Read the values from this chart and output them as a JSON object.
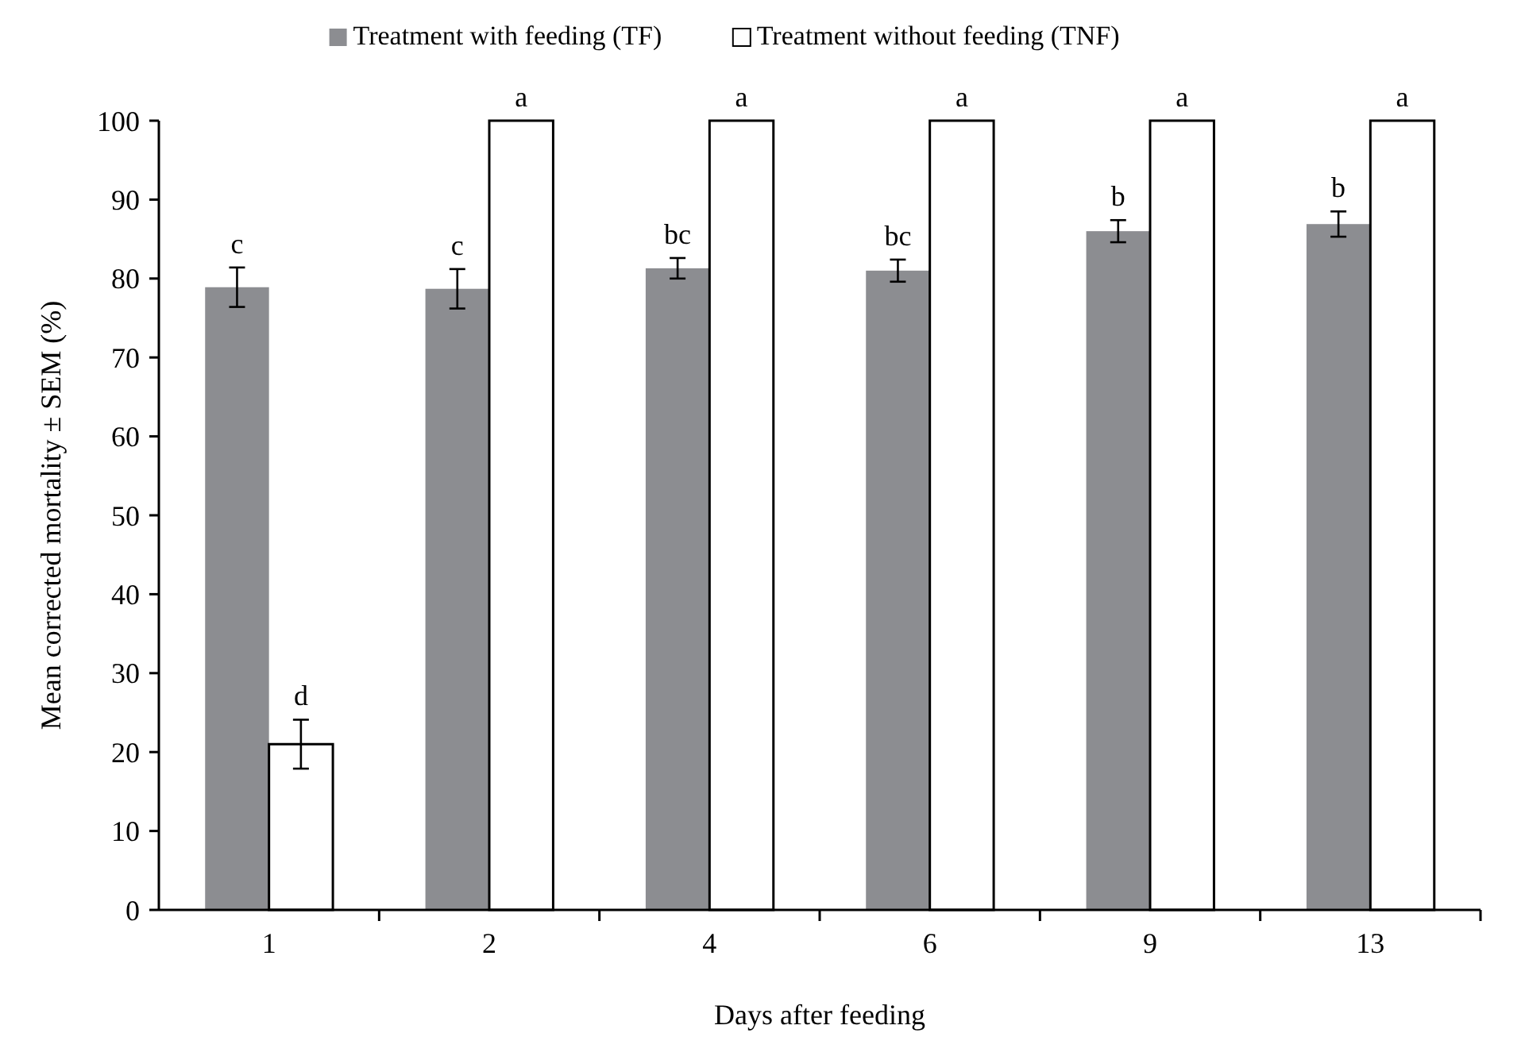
{
  "chart_data": {
    "type": "bar",
    "xlabel": "Days after feeding",
    "ylabel": "Mean corrected mortality ± SEM (%)",
    "categories": [
      "1",
      "2",
      "4",
      "6",
      "9",
      "13"
    ],
    "series": [
      {
        "name": "Treatment with feeding (TF)",
        "color": "#8c8d91",
        "values": [
          78.9,
          78.7,
          81.3,
          81.0,
          86.0,
          86.9
        ],
        "errors": [
          2.5,
          2.5,
          1.3,
          1.4,
          1.4,
          1.6
        ],
        "value_labels": [
          "c",
          "c",
          "bc",
          "bc",
          "b",
          "b"
        ]
      },
      {
        "name": "Treatment without feeding (TNF)",
        "color": "#ffffff",
        "values": [
          21.0,
          100,
          100,
          100,
          100,
          100
        ],
        "errors": [
          3.1,
          null,
          null,
          null,
          null,
          null
        ],
        "value_labels": [
          "d",
          "a",
          "a",
          "a",
          "a",
          "a"
        ]
      }
    ],
    "ylim": [
      0,
      100
    ],
    "yticks": [
      0,
      10,
      20,
      30,
      40,
      50,
      60,
      70,
      80,
      90,
      100
    ],
    "grid": false,
    "legend": "top"
  }
}
